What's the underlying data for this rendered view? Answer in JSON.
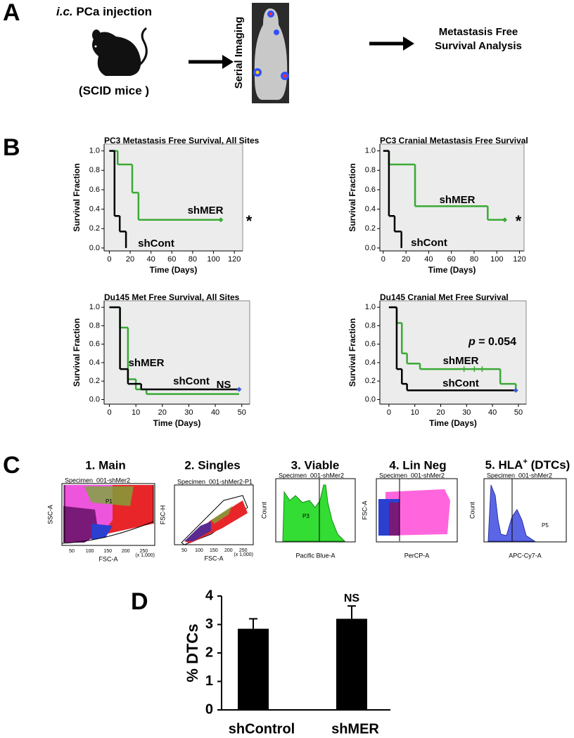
{
  "panel_a": {
    "label": "A",
    "injection_italic": "i.c.",
    "injection": " PCa injection",
    "mice": "(SCID mice )",
    "imaging": "Serial Imaging",
    "analysis": [
      "Metastasis Free",
      "Survival Analysis"
    ]
  },
  "panel_b": {
    "label": "B"
  },
  "chart_data": [
    {
      "type": "line",
      "drawstyle": "steps-post",
      "title": "PC3 Metastasis Free Survival, All Sites",
      "xlabel": "Time (Days)",
      "ylabel": "Survival Fraction",
      "xlim": [
        -5,
        128
      ],
      "ylim": [
        -0.03,
        1.07
      ],
      "xticks": [
        0,
        20,
        40,
        60,
        80,
        100,
        120
      ],
      "yticks": [
        {
          "value": 0,
          "label": "0.0"
        },
        {
          "value": 0.2,
          "label": "0.2"
        },
        {
          "value": 0.4,
          "label": "0.4"
        },
        {
          "value": 0.6,
          "label": "0.6"
        },
        {
          "value": 0.8,
          "label": "0.8"
        },
        {
          "value": 1,
          "label": "1.0"
        }
      ],
      "series": [
        {
          "name": "shMER",
          "color": "#3aaa35",
          "x": [
            0,
            8,
            22,
            28,
            107
          ],
          "values": [
            1.0,
            0.86,
            0.57,
            0.29,
            0.29
          ],
          "end_marker_color": "#3aaa35"
        },
        {
          "name": "shCont",
          "color": "#000000",
          "x": [
            0,
            5,
            10,
            16
          ],
          "values": [
            1.0,
            0.33,
            0.17,
            0.0
          ]
        }
      ],
      "annotation": "*"
    },
    {
      "type": "line",
      "drawstyle": "steps-post",
      "title": "PC3 Cranial Metastasis Free Survival",
      "xlabel": "Time (Days)",
      "ylabel": "Survival Fraction",
      "xlim": [
        -3,
        124
      ],
      "ylim": [
        -0.03,
        1.07
      ],
      "xticks": [
        0,
        20,
        40,
        60,
        80,
        100,
        120
      ],
      "yticks": [
        {
          "value": 0,
          "label": "0.0"
        },
        {
          "value": 0.2,
          "label": "0.2"
        },
        {
          "value": 0.4,
          "label": "0.4"
        },
        {
          "value": 0.6,
          "label": "0.6"
        },
        {
          "value": 0.8,
          "label": "0.8"
        },
        {
          "value": 1,
          "label": "1.0"
        }
      ],
      "series": [
        {
          "name": "shMER",
          "color": "#3aaa35",
          "x": [
            0,
            5,
            28,
            92,
            107
          ],
          "values": [
            1.0,
            0.86,
            0.43,
            0.29,
            0.29
          ],
          "end_marker_color": "#3aaa35"
        },
        {
          "name": "shCont",
          "color": "#000000",
          "x": [
            0,
            5,
            10,
            16
          ],
          "values": [
            1.0,
            0.33,
            0.17,
            0.0
          ]
        }
      ],
      "annotation": "*"
    },
    {
      "type": "line",
      "drawstyle": "steps-post",
      "title": "Du145 Met Free Survival, All Sites",
      "xlabel": "Time (Days)",
      "ylabel": "Survival Fraction",
      "xlim": [
        -2,
        53
      ],
      "ylim": [
        -0.05,
        1.07
      ],
      "xticks": [
        0,
        10,
        20,
        30,
        40,
        50
      ],
      "yticks": [
        {
          "value": 0,
          "label": "0.0"
        },
        {
          "value": 0.2,
          "label": "0.2"
        },
        {
          "value": 0.4,
          "label": "0.4"
        },
        {
          "value": 0.6,
          "label": "0.6"
        },
        {
          "value": 0.8,
          "label": "0.8"
        },
        {
          "value": 1,
          "label": "1.0"
        }
      ],
      "series": [
        {
          "name": "shMER",
          "color": "#3aaa35",
          "x": [
            0,
            4,
            7,
            10,
            14,
            49
          ],
          "values": [
            1.0,
            0.78,
            0.22,
            0.11,
            0.06,
            0.06
          ]
        },
        {
          "name": "shCont",
          "color": "#000000",
          "x": [
            0,
            4,
            7,
            12,
            49
          ],
          "values": [
            1.0,
            0.33,
            0.17,
            0.11,
            0.11
          ],
          "end_marker_color": "#3b5bdb"
        }
      ],
      "annotation": "NS"
    },
    {
      "type": "line",
      "drawstyle": "steps-post",
      "title": "Du145 Cranial Met Free Survival",
      "xlabel": "Time (Days)",
      "ylabel": "Survival Fraction",
      "xlim": [
        -3.5,
        53
      ],
      "ylim": [
        -0.05,
        1.07
      ],
      "xticks": [
        0,
        10,
        20,
        30,
        40,
        50
      ],
      "yticks": [
        {
          "value": 0,
          "label": "0.0"
        },
        {
          "value": 0.2,
          "label": "0.2"
        },
        {
          "value": 0.4,
          "label": "0.4"
        },
        {
          "value": 0.6,
          "label": "0.6"
        },
        {
          "value": 0.8,
          "label": "0.8"
        },
        {
          "value": 1,
          "label": "1.0"
        }
      ],
      "series": [
        {
          "name": "shMER",
          "color": "#3aaa35",
          "x": [
            0,
            3,
            5,
            7,
            12,
            43,
            49
          ],
          "values": [
            1.0,
            0.83,
            0.5,
            0.39,
            0.33,
            0.17,
            0.11
          ],
          "censor_x": [
            29,
            33,
            36
          ]
        },
        {
          "name": "shCont",
          "color": "#000000",
          "x": [
            0,
            3,
            5,
            7,
            49
          ],
          "values": [
            1.0,
            0.33,
            0.17,
            0.1,
            0.1
          ],
          "end_marker_color": "#3b5bdb"
        }
      ],
      "annotation_italic": "p",
      "annotation": " = 0.054"
    },
    {
      "type": "bar",
      "ylabel": "% DTCs",
      "categories": [
        "shControl",
        "shMER"
      ],
      "values": [
        2.85,
        3.2
      ],
      "errors": [
        0.35,
        0.45
      ],
      "color": "#000000",
      "ylim": [
        0,
        4
      ],
      "yticks": [
        0,
        1,
        2,
        3,
        4
      ],
      "annotation": "NS"
    }
  ],
  "panel_c": {
    "label": "C",
    "plots": [
      {
        "title": "1. Main",
        "header": "Specimen_001-shMer2",
        "xlabel": "FSC-A",
        "ylabel": "SSC-A",
        "gate": "P1",
        "xticks": [
          "50",
          "100",
          "150",
          "200",
          "250"
        ],
        "unit": "(x 1,000)"
      },
      {
        "title": "2. Singles",
        "header": "Specimen_001-shMer2-P1",
        "xlabel": "FSC-A",
        "ylabel": "FSC-H",
        "xticks": [
          "50",
          "100",
          "150",
          "200",
          "250"
        ],
        "unit": "(x 1,000)"
      },
      {
        "title": "3. Viable",
        "header": "Specimen_001-shMer2",
        "xlabel": "Pacific Blue-A",
        "ylabel": "Count",
        "gate": "P3"
      },
      {
        "title": "4. Lin Neg",
        "header": "Specimen_001-shMer2",
        "xlabel": "PerCP-A",
        "ylabel": "FSC-A"
      },
      {
        "title": "5. HLA",
        "title_sup": "+",
        "title_suffix": " (DTCs)",
        "header": "Specimen_001-shMer2",
        "xlabel": "APC-Cy7-A",
        "ylabel": "Count",
        "gate": "P5"
      }
    ]
  },
  "panel_d": {
    "label": "D"
  }
}
